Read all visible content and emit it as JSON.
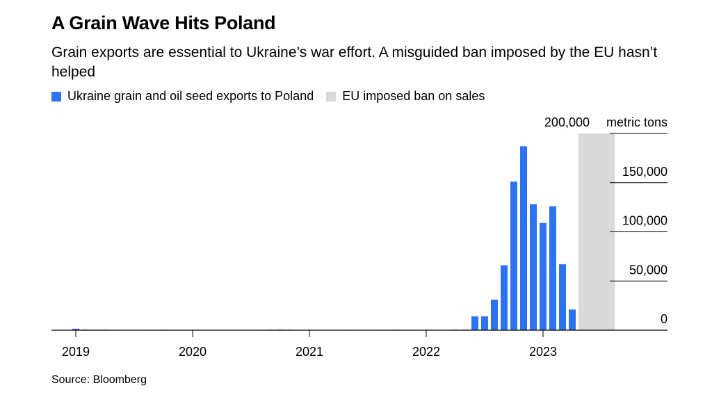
{
  "header": {
    "title": "A Grain Wave Hits Poland",
    "subtitle": "Grain exports are essential to Ukraine’s war effort. A misguided ban imposed by the EU hasn’t helped"
  },
  "legend": {
    "items": [
      {
        "label": "Ukraine grain and oil seed exports to Poland",
        "color": "#2d72f0"
      },
      {
        "label": "EU imposed ban on sales",
        "color": "#d9d9d9"
      }
    ]
  },
  "footer": {
    "source": "Source: Bloomberg"
  },
  "chart_data": {
    "type": "bar",
    "y_unit_label": "metric tons",
    "ylim": [
      0,
      200000
    ],
    "y_ticks": [
      {
        "value": 200000,
        "label": "200,000"
      },
      {
        "value": 150000,
        "label": "150,000"
      },
      {
        "value": 100000,
        "label": "100,000"
      },
      {
        "value": 50000,
        "label": "50,000"
      },
      {
        "value": 0,
        "label": "0"
      }
    ],
    "x_ticks": [
      {
        "month": "2019-01",
        "label": "2019"
      },
      {
        "month": "2020-01",
        "label": "2020"
      },
      {
        "month": "2021-01",
        "label": "2021"
      },
      {
        "month": "2022-01",
        "label": "2022"
      },
      {
        "month": "2023-01",
        "label": "2023"
      }
    ],
    "x_range": [
      "2018-11",
      "2024-01"
    ],
    "ban_period": {
      "start": "2023-05",
      "end": "2023-08"
    },
    "series": [
      {
        "label": "Ukraine grain and oil seed exports to Poland",
        "color": "#2d72f0",
        "months": [
          "2019-01",
          "2019-02",
          "2019-03",
          "2019-04",
          "2019-05",
          "2019-06",
          "2019-07",
          "2019-08",
          "2019-09",
          "2019-10",
          "2019-11",
          "2019-12",
          "2020-01",
          "2020-02",
          "2020-03",
          "2020-04",
          "2020-05",
          "2020-06",
          "2020-07",
          "2020-08",
          "2020-09",
          "2020-10",
          "2020-11",
          "2020-12",
          "2021-01",
          "2021-02",
          "2021-03",
          "2021-04",
          "2021-05",
          "2021-06",
          "2021-07",
          "2021-08",
          "2021-09",
          "2021-10",
          "2021-11",
          "2021-12",
          "2022-01",
          "2022-02",
          "2022-03",
          "2022-04",
          "2022-05",
          "2022-06",
          "2022-07",
          "2022-08",
          "2022-09",
          "2022-10",
          "2022-11",
          "2022-12",
          "2023-01",
          "2023-02",
          "2023-03",
          "2023-04",
          "2023-05",
          "2023-06",
          "2023-07",
          "2023-08"
        ],
        "values": [
          1500,
          700,
          400,
          500,
          400,
          300,
          300,
          400,
          400,
          500,
          400,
          400,
          400,
          300,
          300,
          300,
          300,
          300,
          300,
          400,
          500,
          600,
          500,
          400,
          400,
          300,
          300,
          300,
          400,
          300,
          300,
          400,
          400,
          500,
          400,
          400,
          300,
          300,
          300,
          500,
          600,
          14000,
          14000,
          31000,
          66000,
          151000,
          187000,
          128000,
          109000,
          126000,
          67000,
          21000,
          400,
          300,
          300,
          300
        ]
      }
    ]
  }
}
